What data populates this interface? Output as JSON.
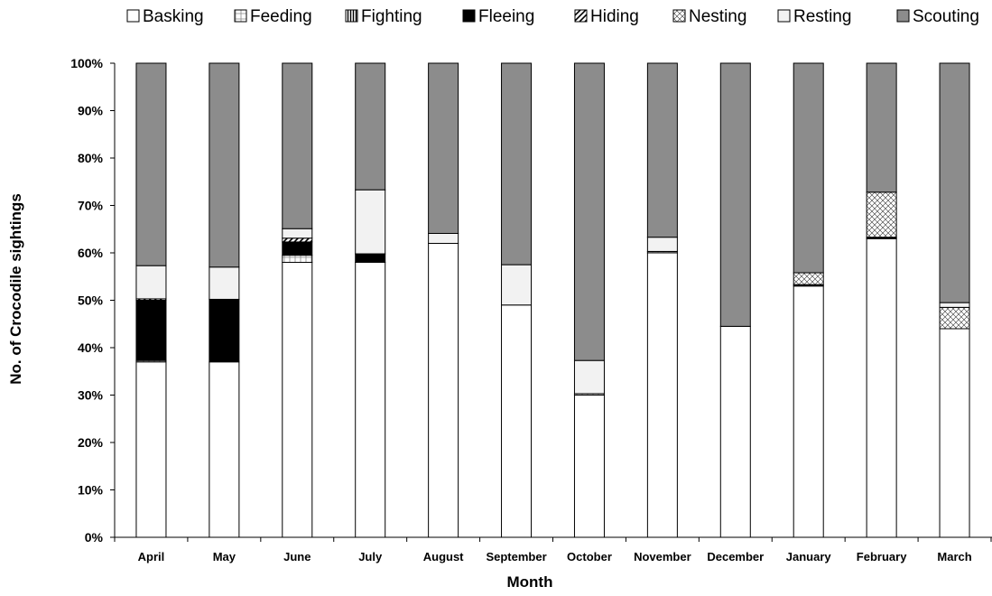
{
  "chart_data": {
    "type": "bar",
    "stacked": true,
    "title": "",
    "xlabel": "Month",
    "ylabel": "No. of Crocodile sightings",
    "ylim": [
      0,
      100
    ],
    "yticks": [
      "0%",
      "10%",
      "20%",
      "30%",
      "40%",
      "50%",
      "60%",
      "70%",
      "80%",
      "90%",
      "100%"
    ],
    "grid": false,
    "legend_position": "top",
    "categories": [
      "April",
      "May",
      "June",
      "July",
      "August",
      "September",
      "October",
      "November",
      "December",
      "January",
      "February",
      "March"
    ],
    "series": [
      {
        "name": "Basking",
        "pattern": "white",
        "values": [
          37,
          37,
          58,
          58,
          62,
          49,
          30,
          60,
          44.5,
          53,
          63,
          44
        ]
      },
      {
        "name": "Feeding",
        "pattern": "grid",
        "values": [
          0.3,
          0,
          1.5,
          0,
          0,
          0,
          0.3,
          0.3,
          0,
          0,
          0,
          0
        ]
      },
      {
        "name": "Fighting",
        "pattern": "vertical",
        "values": [
          0,
          0,
          0,
          0,
          0,
          0,
          0,
          0,
          0,
          0,
          0,
          0
        ]
      },
      {
        "name": "Fleeing",
        "pattern": "black",
        "values": [
          12.7,
          13.2,
          2.8,
          1.8,
          0,
          0,
          0,
          0,
          0,
          0.3,
          0.3,
          0
        ]
      },
      {
        "name": "Hiding",
        "pattern": "diagonal",
        "values": [
          0.3,
          0,
          0.8,
          0,
          0,
          0,
          0,
          0,
          0,
          0,
          0,
          0
        ]
      },
      {
        "name": "Nesting",
        "pattern": "crosshatch",
        "values": [
          0,
          0,
          0,
          0,
          0,
          0,
          0,
          0,
          0,
          2.5,
          9.5,
          4.5
        ]
      },
      {
        "name": "Resting",
        "pattern": "light",
        "values": [
          7,
          6.8,
          2,
          13.5,
          2.1,
          8.5,
          7,
          3,
          0,
          0,
          0,
          1
        ]
      },
      {
        "name": "Scouting",
        "pattern": "gray",
        "values": [
          42.7,
          43,
          34.9,
          26.7,
          35.9,
          42.5,
          62.7,
          36.7,
          55.5,
          44.2,
          27.2,
          50.5
        ]
      }
    ],
    "colors": {
      "white": "#ffffff",
      "light": "#f2f2f2",
      "black": "#000000",
      "gray": "#8c8c8c",
      "pattern_bg": "#ffffff",
      "pattern_fg": "#000000"
    }
  }
}
